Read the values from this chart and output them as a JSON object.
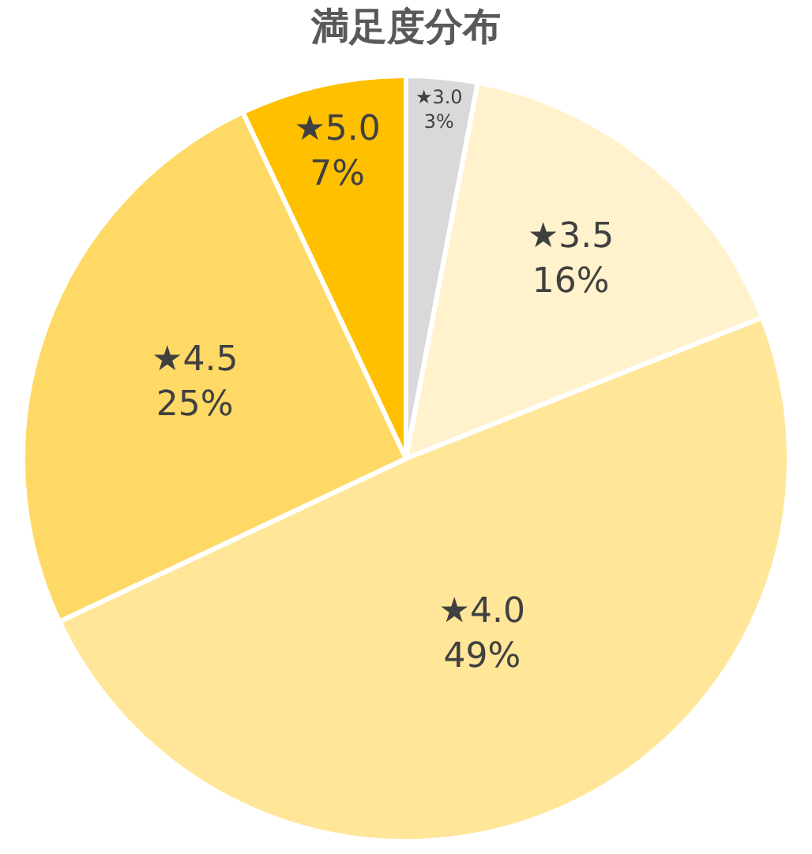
{
  "chart_data": {
    "type": "pie",
    "title": "満足度分布",
    "categories": [
      "★3.0",
      "★3.5",
      "★4.0",
      "★4.5",
      "★5.0"
    ],
    "values": [
      3,
      16,
      49,
      25,
      7
    ],
    "value_labels": [
      "3%",
      "16%",
      "49%",
      "25%",
      "7%"
    ],
    "colors": [
      "#d9d9d9",
      "#fff2cc",
      "#ffe699",
      "#ffd966",
      "#ffc000"
    ],
    "legend": false
  }
}
